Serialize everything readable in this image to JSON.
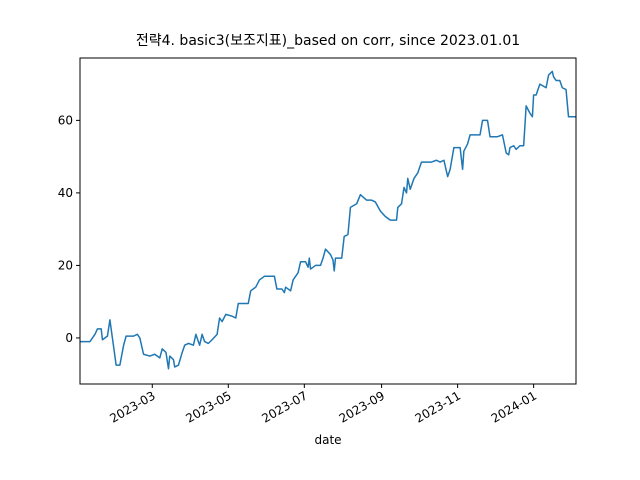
{
  "chart_data": {
    "type": "line",
    "title": "전략4. basic3(보조지표)_based on corr, since 2023.01.01",
    "xlabel": "date",
    "color": "#1f77b4",
    "xlim": [
      "2023-01-02",
      "2024-02-04"
    ],
    "ylim": [
      -12.7,
      77.2
    ],
    "yticks": [
      0,
      20,
      40,
      60
    ],
    "xticks": [
      {
        "value": "2023-03-01",
        "label": "2023-03"
      },
      {
        "value": "2023-05-01",
        "label": "2023-05"
      },
      {
        "value": "2023-07-01",
        "label": "2023-07"
      },
      {
        "value": "2023-09-01",
        "label": "2023-09"
      },
      {
        "value": "2023-11-01",
        "label": "2023-11"
      },
      {
        "value": "2024-01-01",
        "label": "2024-01"
      }
    ],
    "x": [
      "2023-01-02",
      "2023-01-10",
      "2023-01-14",
      "2023-01-16",
      "2023-01-19",
      "2023-01-20",
      "2023-01-24",
      "2023-01-26",
      "2023-01-28",
      "2023-01-31",
      "2023-02-03",
      "2023-02-06",
      "2023-02-08",
      "2023-02-14",
      "2023-02-17",
      "2023-02-19",
      "2023-02-22",
      "2023-02-27",
      "2023-03-03",
      "2023-03-07",
      "2023-03-09",
      "2023-03-12",
      "2023-03-14",
      "2023-03-15",
      "2023-03-18",
      "2023-03-19",
      "2023-03-22",
      "2023-03-25",
      "2023-03-27",
      "2023-03-30",
      "2023-04-03",
      "2023-04-05",
      "2023-04-08",
      "2023-04-10",
      "2023-04-12",
      "2023-04-15",
      "2023-04-18",
      "2023-04-22",
      "2023-04-24",
      "2023-04-26",
      "2023-04-29",
      "2023-05-04",
      "2023-05-07",
      "2023-05-09",
      "2023-05-17",
      "2023-05-19",
      "2023-05-23",
      "2023-05-26",
      "2023-05-30",
      "2023-06-07",
      "2023-06-09",
      "2023-06-13",
      "2023-06-15",
      "2023-06-16",
      "2023-06-20",
      "2023-06-22",
      "2023-06-26",
      "2023-06-28",
      "2023-07-02",
      "2023-07-04",
      "2023-07-05",
      "2023-07-06",
      "2023-07-10",
      "2023-07-14",
      "2023-07-16",
      "2023-07-18",
      "2023-07-22",
      "2023-07-24",
      "2023-07-25",
      "2023-07-26",
      "2023-07-31",
      "2023-08-02",
      "2023-08-05",
      "2023-08-07",
      "2023-08-12",
      "2023-08-15",
      "2023-08-20",
      "2023-08-24",
      "2023-08-27",
      "2023-08-31",
      "2023-09-04",
      "2023-09-08",
      "2023-09-13",
      "2023-09-14",
      "2023-09-17",
      "2023-09-19",
      "2023-09-21",
      "2023-09-22",
      "2023-09-24",
      "2023-09-27",
      "2023-09-30",
      "2023-10-03",
      "2023-10-11",
      "2023-10-15",
      "2023-10-18",
      "2023-10-21",
      "2023-10-24",
      "2023-10-26",
      "2023-10-29",
      "2023-11-03",
      "2023-11-05",
      "2023-11-06",
      "2023-11-09",
      "2023-11-11",
      "2023-11-19",
      "2023-11-21",
      "2023-11-25",
      "2023-11-27",
      "2023-12-03",
      "2023-12-07",
      "2023-12-10",
      "2023-12-12",
      "2023-12-13",
      "2023-12-16",
      "2023-12-18",
      "2023-12-21",
      "2023-12-24",
      "2023-12-26",
      "2023-12-29",
      "2023-12-31",
      "2024-01-01",
      "2024-01-03",
      "2024-01-06",
      "2024-01-11",
      "2024-01-13",
      "2024-01-16",
      "2024-01-17",
      "2024-01-19",
      "2024-01-22",
      "2024-01-24",
      "2024-01-27",
      "2024-01-29",
      "2024-02-04"
    ],
    "values": [
      -1,
      -1,
      1,
      2.5,
      2.5,
      -0.5,
      0.5,
      5,
      0,
      -7.5,
      -7.5,
      -2,
      0.5,
      0.5,
      1,
      0,
      -4.5,
      -5,
      -4.5,
      -5.5,
      -3,
      -4,
      -8.5,
      -5,
      -6,
      -8,
      -7.5,
      -4,
      -2,
      -1.5,
      -2,
      1,
      -2,
      1,
      -1,
      -1.5,
      -0.5,
      1,
      5.5,
      4.5,
      6.5,
      6,
      5.5,
      9.5,
      9.5,
      13,
      14,
      16,
      17,
      17,
      13.5,
      13.5,
      12.5,
      14,
      13,
      16,
      18,
      21,
      21,
      19.5,
      22,
      19,
      20,
      20,
      22,
      24.5,
      23,
      21.5,
      18.5,
      22,
      22,
      28,
      28.5,
      36,
      37,
      39.5,
      38,
      38,
      37.5,
      35,
      33.5,
      32.5,
      32.5,
      36,
      37,
      41.5,
      40,
      44,
      41,
      44,
      45.5,
      48.5,
      48.5,
      49,
      48.5,
      49,
      44.5,
      46.5,
      52.5,
      52.5,
      46.5,
      51.5,
      53.5,
      56,
      56,
      60,
      60,
      55.5,
      55.5,
      56,
      51,
      50.5,
      52.5,
      53,
      52,
      53,
      53,
      64,
      62,
      61,
      67,
      67,
      70,
      69,
      72.5,
      73.5,
      72,
      71,
      71,
      69,
      68.5,
      61,
      61
    ]
  }
}
